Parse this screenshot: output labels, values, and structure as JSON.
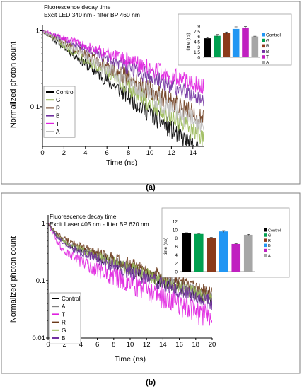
{
  "panels": {
    "a": {
      "caption": "(a)"
    },
    "b": {
      "caption": "(b)"
    }
  },
  "chart_data": [
    {
      "type": "line",
      "title": "Fluorescence decay time",
      "subtitle": "Excit LED 340 nm - filter BP 460 nm",
      "xlabel": "Time (ns)",
      "ylabel": "Normalized photon count",
      "xlim": [
        0,
        15
      ],
      "ylim": [
        0.03,
        1.2
      ],
      "yscale": "log",
      "xticks": [
        0,
        2,
        4,
        6,
        8,
        10,
        12,
        14
      ],
      "yticks": [
        {
          "v": 1,
          "label": "1"
        },
        {
          "v": 0.1,
          "label": "0.1"
        }
      ],
      "grid": false,
      "legend_position": "lower-left",
      "series": [
        {
          "name": "Control",
          "color": "#000000",
          "tau": 4.0,
          "noise": 0.14
        },
        {
          "name": "G",
          "color": "#9bbb59",
          "tau": 4.6,
          "noise": 0.14
        },
        {
          "name": "R",
          "color": "#6b3a1a",
          "tau": 5.6,
          "noise": 0.14
        },
        {
          "name": "B",
          "color": "#7030a0",
          "tau": 7.2,
          "noise": 0.12
        },
        {
          "name": "T",
          "color": "#e020e0",
          "tau": 8.8,
          "noise": 0.12
        },
        {
          "name": "A",
          "color": "#c0c0c0",
          "tau": 5.1,
          "noise": 0.15
        }
      ]
    },
    {
      "type": "bar",
      "title": "",
      "ylabel": "time (ns)",
      "categories": [
        "Control",
        "G",
        "R",
        "B",
        "T",
        "A"
      ],
      "values": [
        5.5,
        6.2,
        7.0,
        8.2,
        8.6,
        6.0
      ],
      "errors": [
        0.2,
        0.4,
        0.3,
        0.6,
        0.3,
        0.1
      ],
      "colors": [
        "#000000",
        "#00a050",
        "#8b3a1a",
        "#2196f3",
        "#c020c0",
        "#a6a6a6"
      ],
      "legend_colors": [
        "#2196f3",
        "#00a050",
        "#8b3a1a",
        "#7030a0",
        "#c020c0",
        "#a6a6a6"
      ],
      "ylim": [
        0,
        9
      ],
      "yticks": [
        0,
        1.5,
        3,
        4.5,
        6,
        7.5,
        9
      ],
      "legend_position": "right"
    },
    {
      "type": "line",
      "title": "Fluorescence decay time",
      "subtitle": "Excit Laser 405 nm - filter BP 620 nm",
      "xlabel": "Time (ns)",
      "ylabel": "Normalized photon count",
      "xlim": [
        0,
        20
      ],
      "ylim": [
        0.01,
        1.4
      ],
      "yscale": "log",
      "xticks": [
        0,
        2,
        4,
        6,
        8,
        10,
        12,
        14,
        16,
        18,
        20
      ],
      "yticks": [
        {
          "v": 1,
          "label": "1"
        },
        {
          "v": 0.1,
          "label": "0.1"
        },
        {
          "v": 0.01,
          "label": "0.01"
        }
      ],
      "grid": false,
      "legend_position": "lower-left",
      "series": [
        {
          "name": "Control",
          "color": "#000000",
          "a1": 0.45,
          "t1": 0.9,
          "a2": 0.55,
          "t2": 8.0,
          "noise": 0.12
        },
        {
          "name": "A",
          "color": "#808080",
          "a1": 0.45,
          "t1": 0.9,
          "a2": 0.55,
          "t2": 8.4,
          "noise": 0.12
        },
        {
          "name": "T",
          "color": "#e020e0",
          "a1": 0.62,
          "t1": 0.8,
          "a2": 0.38,
          "t2": 7.0,
          "noise": 0.22
        },
        {
          "name": "R",
          "color": "#6b3a1a",
          "a1": 0.38,
          "t1": 1.0,
          "a2": 0.62,
          "t2": 8.6,
          "noise": 0.12
        },
        {
          "name": "G",
          "color": "#9bbb59",
          "a1": 0.45,
          "t1": 0.9,
          "a2": 0.55,
          "t2": 8.2,
          "noise": 0.13
        },
        {
          "name": "B",
          "color": "#7030a0",
          "a1": 0.5,
          "t1": 0.9,
          "a2": 0.5,
          "t2": 8.0,
          "noise": 0.14
        }
      ]
    },
    {
      "type": "bar",
      "title": "",
      "ylabel": "time (ns)",
      "categories": [
        "Control",
        "G",
        "R",
        "B",
        "T",
        "A"
      ],
      "values": [
        9.2,
        9.0,
        8.0,
        9.6,
        6.6,
        8.8
      ],
      "errors": [
        0.1,
        0.1,
        0.2,
        0.2,
        0.1,
        0.1
      ],
      "colors": [
        "#000000",
        "#00a050",
        "#8b3a1a",
        "#2196f3",
        "#c020c0",
        "#a6a6a6"
      ],
      "legend_colors": [
        "#000000",
        "#00a050",
        "#8b3a1a",
        "#2196f3",
        "#c020c0",
        "#a6a6a6"
      ],
      "ylim": [
        0,
        12
      ],
      "yticks": [
        0,
        2,
        4,
        6,
        8,
        10,
        12
      ],
      "legend_position": "right"
    }
  ]
}
